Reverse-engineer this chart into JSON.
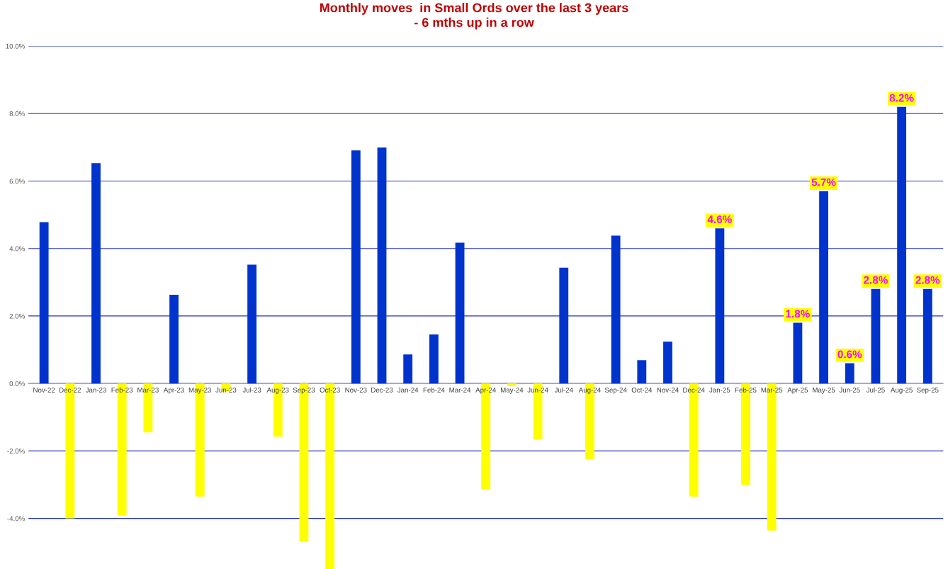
{
  "chart_data": {
    "type": "bar",
    "title": "Monthly moves  in Small Ords over the last 3 years\n- 6 mths up in a row",
    "categories": [
      "Nov-22",
      "Dec-22",
      "Jan-23",
      "Feb-23",
      "Mar-23",
      "Apr-23",
      "May-23",
      "Jun-23",
      "Jul-23",
      "Aug-23",
      "Sep-23",
      "Oct-23",
      "Nov-23",
      "Dec-23",
      "Jan-24",
      "Feb-24",
      "Mar-24",
      "Apr-24",
      "May-24",
      "Jun-24",
      "Jul-24",
      "Aug-24",
      "Sep-24",
      "Oct-24",
      "Nov-24",
      "Dec-24",
      "Jan-25",
      "Feb-25",
      "Mar-25",
      "Apr-25",
      "May-25",
      "Jun-25",
      "Jul-25",
      "Aug-25",
      "Sep-25"
    ],
    "values": [
      4.78,
      -4.0,
      6.53,
      -3.92,
      -1.45,
      2.63,
      -3.35,
      -0.23,
      3.52,
      -1.58,
      -4.69,
      -5.5,
      6.91,
      6.99,
      0.86,
      1.45,
      4.17,
      -3.14,
      -0.08,
      -1.66,
      3.43,
      -2.25,
      4.38,
      0.69,
      1.24,
      -3.35,
      4.6,
      -3.01,
      -4.36,
      1.8,
      5.7,
      0.6,
      2.8,
      8.2,
      2.8
    ],
    "colors": [
      "#0033cc",
      "#ffff00",
      "#0033cc",
      "#ffff00",
      "#ffff00",
      "#0033cc",
      "#ffff00",
      "#ffff00",
      "#0033cc",
      "#ffff00",
      "#ffff00",
      "#ffff00",
      "#0033cc",
      "#0033cc",
      "#0033cc",
      "#0033cc",
      "#0033cc",
      "#ffff00",
      "#ffff00",
      "#ffff00",
      "#0033cc",
      "#ffff00",
      "#0033cc",
      "#0033cc",
      "#0033cc",
      "#ffff00",
      "#0033cc",
      "#ffff00",
      "#ffff00",
      "#0033cc",
      "#0033cc",
      "#0033cc",
      "#0033cc",
      "#0033cc",
      "#0033cc"
    ],
    "value_labels": [
      null,
      null,
      null,
      null,
      null,
      null,
      null,
      null,
      null,
      null,
      null,
      null,
      null,
      null,
      null,
      null,
      null,
      null,
      null,
      null,
      null,
      null,
      null,
      null,
      null,
      null,
      "4.6%",
      null,
      null,
      "1.8%",
      "5.7%",
      "0.6%",
      "2.8%",
      "8.2%",
      "2.8%"
    ],
    "ylim": [
      -5.5,
      10
    ],
    "yticks": [
      {
        "value": -4,
        "label": "-4.0%"
      },
      {
        "value": -2,
        "label": "-2.0%"
      },
      {
        "value": 0,
        "label": "0.0%"
      },
      {
        "value": 2,
        "label": "2.0%"
      },
      {
        "value": 4,
        "label": "4.0%"
      },
      {
        "value": 6,
        "label": "6.0%"
      },
      {
        "value": 8,
        "label": "8.0%"
      },
      {
        "value": 10,
        "label": "10.0%"
      }
    ],
    "grid": "y",
    "legend": false
  }
}
